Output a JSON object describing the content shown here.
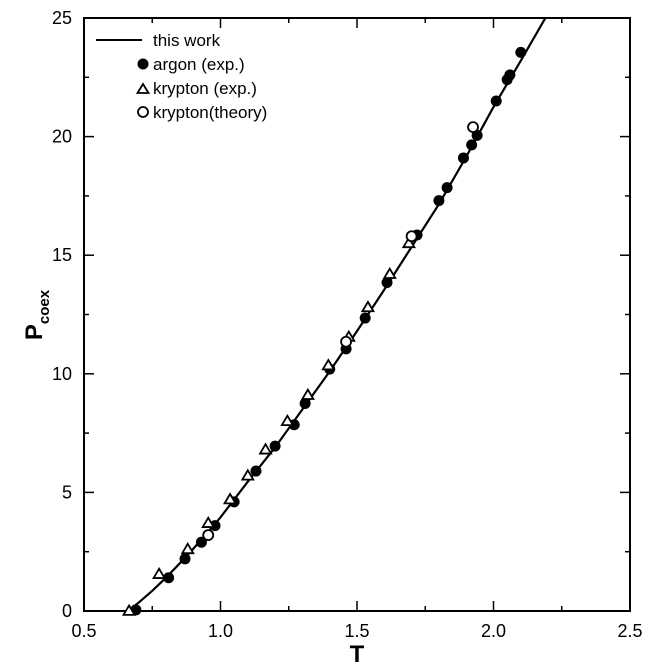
{
  "chart_data": {
    "type": "scatter",
    "xlabel": "T",
    "ylabel": "P",
    "ylabel_sub": "coex",
    "xlim": [
      0.5,
      2.5
    ],
    "ylim": [
      0,
      25
    ],
    "xticks": [
      "0.5",
      "1.0",
      "1.5",
      "2.0",
      "2.5"
    ],
    "yticks": [
      "0",
      "5",
      "10",
      "15",
      "20",
      "25"
    ],
    "grid": false,
    "legend_position": "top-left",
    "series": [
      {
        "name": "this work",
        "kind": "line",
        "x": [
          0.66,
          0.7,
          0.75,
          0.8,
          0.85,
          0.9,
          0.95,
          1.0,
          1.1,
          1.2,
          1.3,
          1.4,
          1.5,
          1.6,
          1.7,
          1.8,
          1.9,
          2.0,
          2.1,
          2.2
        ],
        "y": [
          0.0,
          0.35,
          0.85,
          1.4,
          2.0,
          2.62,
          3.28,
          3.95,
          5.45,
          6.9,
          8.5,
          10.1,
          11.8,
          13.55,
          15.35,
          17.15,
          19.15,
          21.25,
          23.2,
          25.2
        ]
      },
      {
        "name": "argon (exp.)",
        "kind": "filled-circle",
        "x": [
          0.69,
          0.81,
          0.87,
          0.93,
          0.98,
          1.05,
          1.13,
          1.2,
          1.27,
          1.31,
          1.4,
          1.46,
          1.53,
          1.61,
          1.72,
          1.8,
          1.83,
          1.89,
          1.92,
          1.94,
          2.05,
          2.06,
          2.1,
          2.01
        ],
        "y": [
          0.05,
          1.4,
          2.2,
          2.9,
          3.6,
          4.6,
          5.9,
          6.95,
          7.85,
          8.75,
          10.2,
          11.05,
          12.35,
          13.85,
          15.85,
          17.3,
          17.85,
          19.1,
          19.65,
          20.05,
          22.4,
          22.6,
          23.55,
          21.5
        ]
      },
      {
        "name": "krypton (exp.)",
        "kind": "open-triangle",
        "x": [
          0.665,
          0.775,
          0.88,
          0.955,
          1.035,
          1.1,
          1.165,
          1.245,
          1.32,
          1.395,
          1.47,
          1.54,
          1.62,
          1.69
        ],
        "y": [
          0.0,
          1.55,
          2.6,
          3.7,
          4.7,
          5.7,
          6.8,
          8.0,
          9.1,
          10.35,
          11.55,
          12.8,
          14.2,
          15.5
        ]
      },
      {
        "name": "krypton(theory)",
        "kind": "open-circle",
        "x": [
          0.955,
          1.46,
          1.7,
          1.925
        ],
        "y": [
          3.2,
          11.35,
          15.8,
          20.4
        ]
      }
    ]
  }
}
